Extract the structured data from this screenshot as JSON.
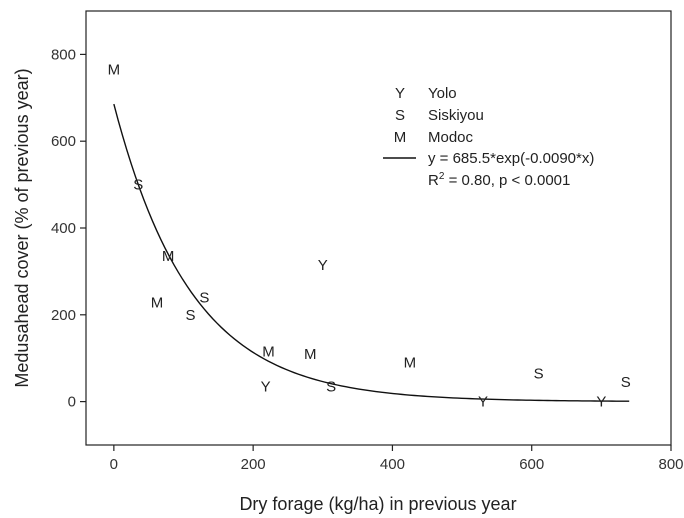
{
  "chart_data": {
    "type": "scatter",
    "title": "",
    "xlabel": "Dry forage (kg/ha) in previous year",
    "ylabel": "Medusahead cover (% of previous year)",
    "xlim": [
      -40,
      800
    ],
    "ylim": [
      -100,
      900
    ],
    "xticks": [
      0,
      200,
      400,
      600,
      800
    ],
    "yticks": [
      0,
      200,
      400,
      600,
      800
    ],
    "grid": false,
    "legend_position": "top-right",
    "series": [
      {
        "name": "Yolo",
        "marker": "Y",
        "points": [
          {
            "x": 300,
            "y": 315
          },
          {
            "x": 218,
            "y": 35
          },
          {
            "x": 530,
            "y": 0
          },
          {
            "x": 700,
            "y": 0
          }
        ]
      },
      {
        "name": "Siskiyou",
        "marker": "S",
        "points": [
          {
            "x": 35,
            "y": 500
          },
          {
            "x": 130,
            "y": 240
          },
          {
            "x": 110,
            "y": 200
          },
          {
            "x": 312,
            "y": 35
          },
          {
            "x": 610,
            "y": 65
          },
          {
            "x": 735,
            "y": 45
          }
        ]
      },
      {
        "name": "Modoc",
        "marker": "M",
        "points": [
          {
            "x": 0,
            "y": 765
          },
          {
            "x": 78,
            "y": 335
          },
          {
            "x": 62,
            "y": 228
          },
          {
            "x": 222,
            "y": 115
          },
          {
            "x": 282,
            "y": 110
          },
          {
            "x": 425,
            "y": 90
          }
        ]
      }
    ],
    "fit": {
      "label": "y = 685.5*exp(-0.0090*x)",
      "stats_prefix": "R",
      "stats_superscript": "2",
      "stats_rest": " = 0.80, p < 0.0001",
      "a": 685.5,
      "b": -0.009,
      "x_range": [
        0,
        740
      ]
    }
  }
}
